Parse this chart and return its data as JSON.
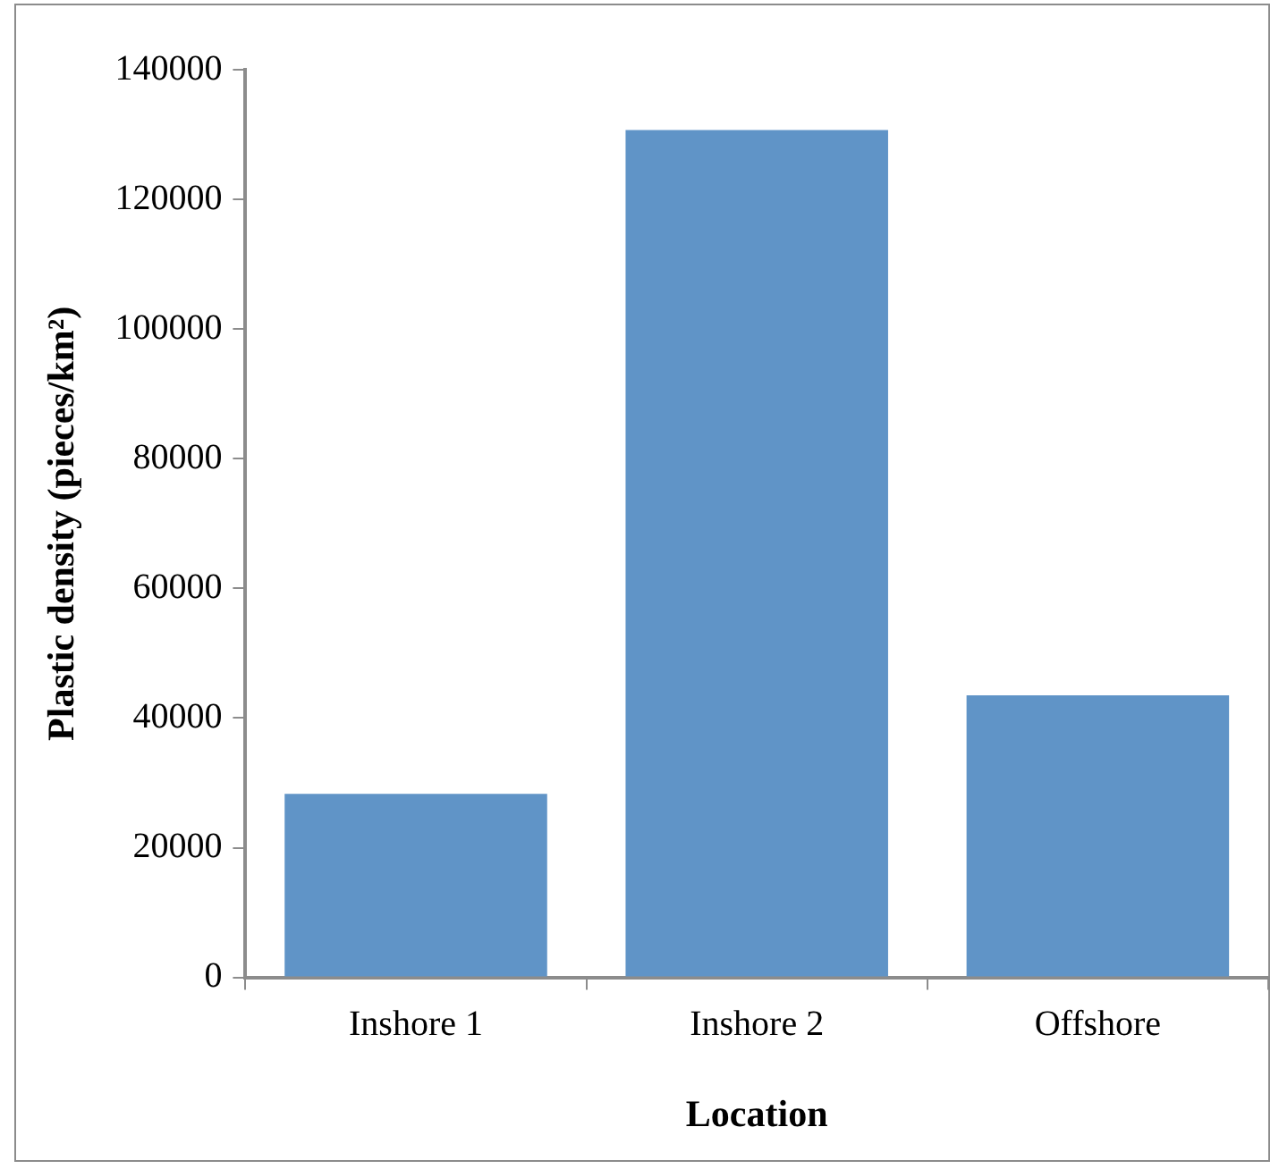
{
  "chart_data": {
    "type": "bar",
    "xlabel": "Location",
    "ylabel": "Plastic density (pieces/km²)",
    "categories": [
      "Inshore 1",
      "Inshore 2",
      "Offshore"
    ],
    "values": [
      28300,
      130700,
      43500
    ],
    "color": "#6094c7",
    "ylim": [
      0,
      140000
    ],
    "yticks": [
      0,
      20000,
      40000,
      60000,
      80000,
      100000,
      120000,
      140000
    ],
    "grid": false,
    "legend": false
  }
}
